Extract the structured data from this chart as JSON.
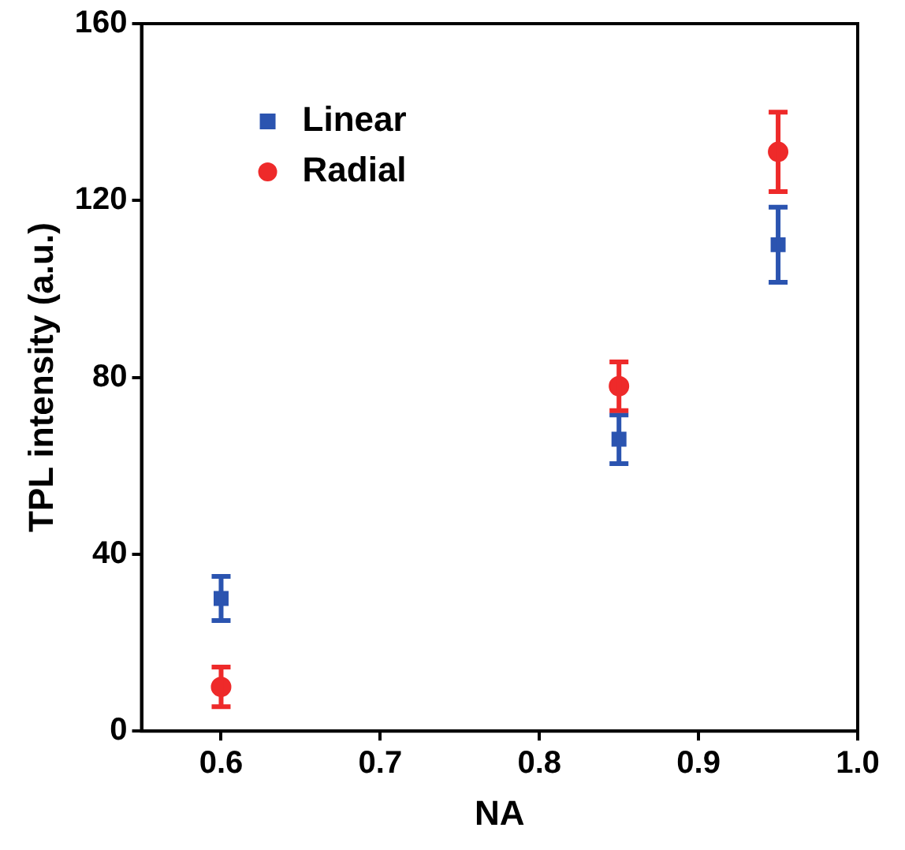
{
  "chart_data": {
    "type": "scatter",
    "xlabel": "NA",
    "ylabel": "TPL intensity (a.u.)",
    "x": [
      0.6,
      0.85,
      0.95
    ],
    "series": [
      {
        "name": "Linear",
        "color": "#2b54b0",
        "marker": "square",
        "values": [
          30,
          66,
          110
        ],
        "errors": [
          5,
          5.5,
          8.5
        ]
      },
      {
        "name": "Radial",
        "color": "#ee2a2a",
        "marker": "circle",
        "values": [
          10,
          78,
          131
        ],
        "errors": [
          4.5,
          5.5,
          9
        ]
      }
    ],
    "xlim": [
      0.55,
      1.0
    ],
    "xticks": [
      0.6,
      0.7,
      0.8,
      0.9,
      {
        "value": 1,
        "label": "1.0"
      }
    ],
    "ylim": [
      0,
      160
    ],
    "yticks": [
      0,
      40,
      80,
      120,
      160
    ],
    "grid": false,
    "legend": "top left"
  }
}
